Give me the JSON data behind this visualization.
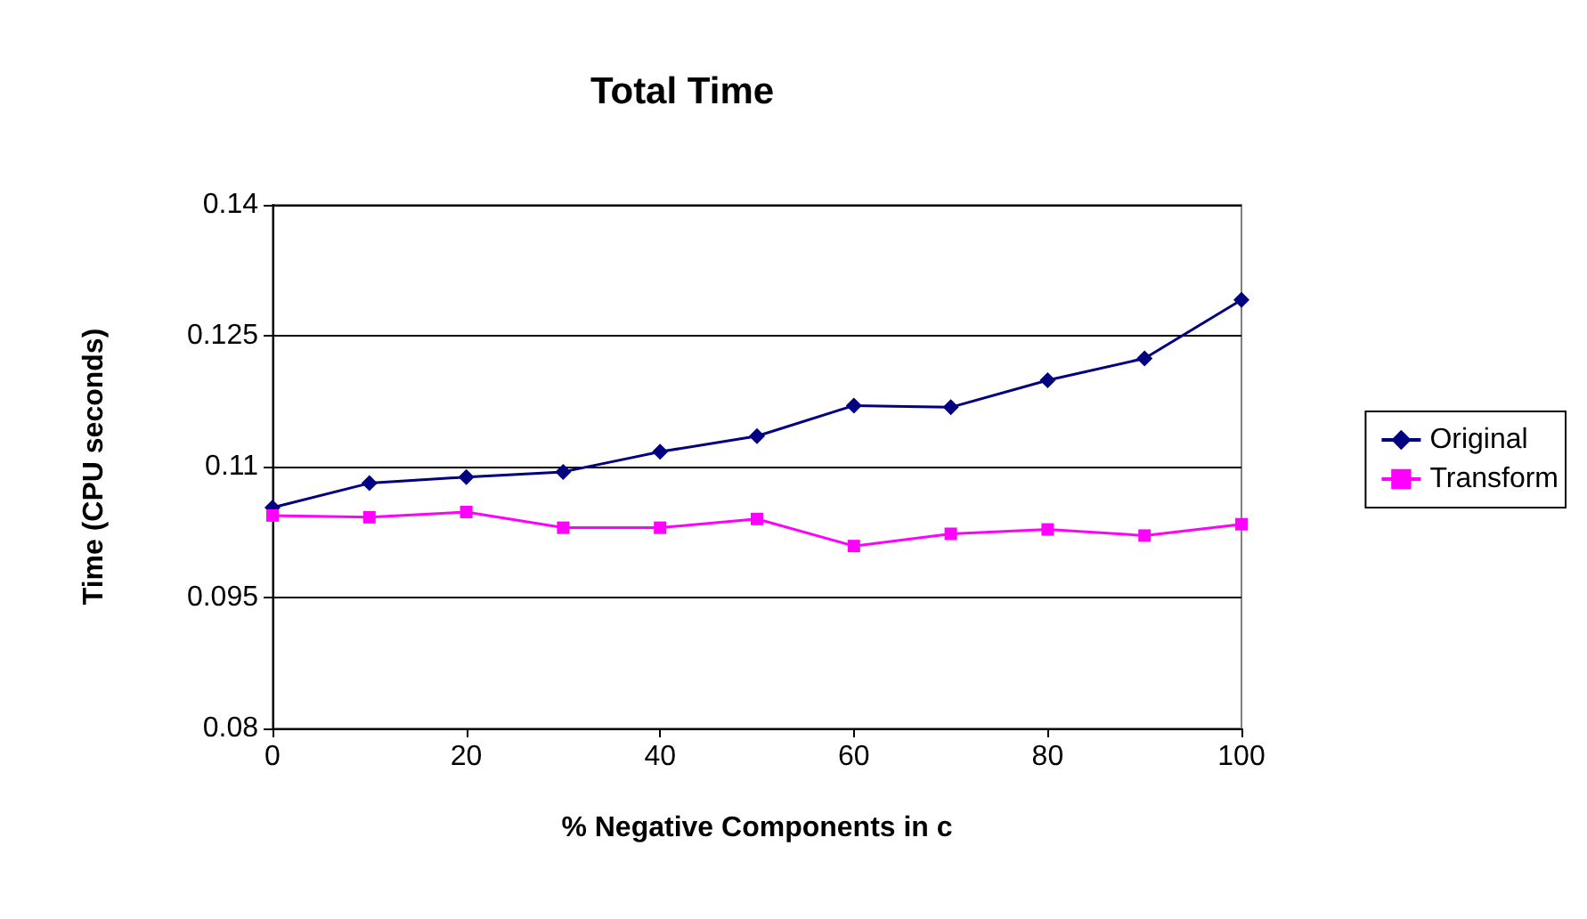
{
  "chart_data": {
    "type": "line",
    "title": "Total Time",
    "xlabel": "% Negative Components in c",
    "ylabel": "Time (CPU seconds)",
    "x": [
      0,
      10,
      20,
      30,
      40,
      50,
      60,
      70,
      80,
      90,
      100
    ],
    "series": [
      {
        "name": "Original",
        "color": "#000080",
        "marker": "diamond",
        "values": [
          0.1053,
          0.1081,
          0.1088,
          0.1094,
          0.1117,
          0.1135,
          0.117,
          0.1168,
          0.1199,
          0.1224,
          0.1291
        ]
      },
      {
        "name": "Transform",
        "color": "#ff00ff",
        "marker": "square",
        "values": [
          0.1044,
          0.1042,
          0.1048,
          0.103,
          0.103,
          0.104,
          0.1009,
          0.1023,
          0.1028,
          0.1021,
          0.1034
        ]
      }
    ],
    "xlim": [
      0,
      100
    ],
    "xticks": [
      0,
      20,
      40,
      60,
      80,
      100
    ],
    "ylim": [
      0.08,
      0.14
    ],
    "yticks": [
      0.08,
      0.095,
      0.11,
      0.125,
      0.14
    ],
    "grid": "y",
    "legend": "right",
    "line_style": "solid"
  }
}
